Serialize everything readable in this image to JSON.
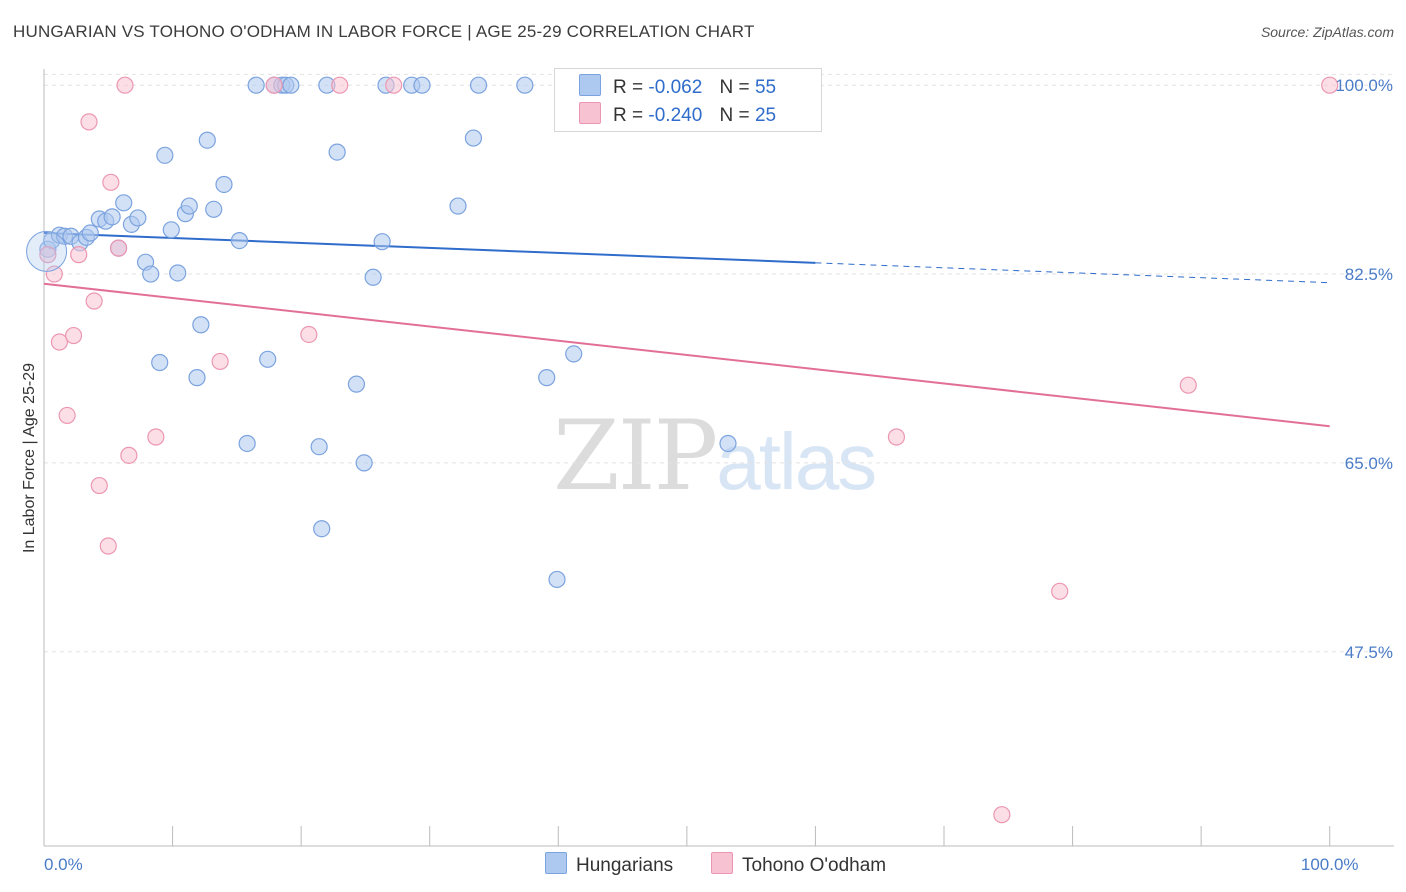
{
  "title": "HUNGARIAN VS TOHONO O'ODHAM IN LABOR FORCE | AGE 25-29 CORRELATION CHART",
  "source": "Source: ZipAtlas.com",
  "watermark": {
    "zip": "ZIP",
    "atlas": "atlas"
  },
  "legend": {
    "r_label": "R =",
    "n_label": "N =",
    "series": [
      {
        "r": "-0.062",
        "n": "55"
      },
      {
        "r": "-0.240",
        "n": "25"
      }
    ]
  },
  "colors": {
    "blue_fill": "#aec9ef",
    "blue_stroke": "#7ba3df",
    "blue_line": "#2f6ccb",
    "pink_fill": "#f7c3d2",
    "pink_stroke": "#ec97b2",
    "pink_line": "#e26f97",
    "tick_text": "#4a7cc7",
    "grid": "#e2e2e2"
  },
  "chart_data": {
    "type": "scatter",
    "title": "HUNGARIAN VS TOHONO O'ODHAM IN LABOR FORCE | AGE 25-29 CORRELATION CHART",
    "xlabel": "",
    "ylabel": "In Labor Force | Age 25-29",
    "xlim": [
      0,
      105
    ],
    "ylim": [
      29.5,
      101.5
    ],
    "x_tick_labels": [
      {
        "value": 0,
        "label": "0.0%"
      },
      {
        "value": 100,
        "label": "100.0%"
      }
    ],
    "y_tick_labels": [
      {
        "value": 100,
        "label": "100.0%"
      },
      {
        "value": 82.5,
        "label": "82.5%"
      },
      {
        "value": 65,
        "label": "65.0%"
      },
      {
        "value": 47.5,
        "label": "47.5%"
      }
    ],
    "series": [
      {
        "name": "Hungarians",
        "points": [
          [
            0.3,
            84.8
          ],
          [
            0.6,
            85.6
          ],
          [
            1.2,
            86.1
          ],
          [
            1.6,
            86.0
          ],
          [
            2.1,
            86.0
          ],
          [
            2.8,
            85.4
          ],
          [
            3.3,
            85.9
          ],
          [
            3.6,
            86.3
          ],
          [
            4.3,
            87.6
          ],
          [
            4.8,
            87.4
          ],
          [
            5.3,
            87.8
          ],
          [
            6.2,
            89.1
          ],
          [
            6.8,
            87.1
          ],
          [
            7.3,
            87.7
          ],
          [
            5.8,
            84.9
          ],
          [
            7.9,
            83.6
          ],
          [
            8.3,
            82.5
          ],
          [
            9.0,
            74.3
          ],
          [
            9.4,
            93.5
          ],
          [
            9.9,
            86.6
          ],
          [
            10.4,
            82.6
          ],
          [
            11.0,
            88.1
          ],
          [
            11.3,
            88.8
          ],
          [
            11.9,
            72.9
          ],
          [
            12.2,
            77.8
          ],
          [
            12.7,
            94.9
          ],
          [
            13.2,
            88.5
          ],
          [
            14.0,
            90.8
          ],
          [
            15.2,
            85.6
          ],
          [
            15.8,
            66.8
          ],
          [
            16.5,
            100.0
          ],
          [
            17.4,
            74.6
          ],
          [
            17.9,
            100.0
          ],
          [
            18.5,
            100.0
          ],
          [
            18.8,
            100.0
          ],
          [
            19.2,
            100.0
          ],
          [
            21.4,
            66.5
          ],
          [
            21.6,
            58.9
          ],
          [
            22.0,
            100.0
          ],
          [
            22.8,
            93.8
          ],
          [
            24.3,
            72.3
          ],
          [
            24.9,
            65.0
          ],
          [
            25.6,
            82.2
          ],
          [
            26.3,
            85.5
          ],
          [
            26.6,
            100.0
          ],
          [
            28.6,
            100.0
          ],
          [
            29.4,
            100.0
          ],
          [
            32.2,
            88.8
          ],
          [
            33.4,
            95.1
          ],
          [
            33.8,
            100.0
          ],
          [
            37.4,
            100.0
          ],
          [
            39.1,
            72.9
          ],
          [
            39.9,
            54.2
          ],
          [
            41.2,
            75.1
          ],
          [
            53.2,
            66.8
          ]
        ]
      },
      {
        "name": "Tohono O'odham",
        "points": [
          [
            0.3,
            84.3
          ],
          [
            0.8,
            82.5
          ],
          [
            1.2,
            76.2
          ],
          [
            1.8,
            69.4
          ],
          [
            2.3,
            76.8
          ],
          [
            2.7,
            84.3
          ],
          [
            3.5,
            96.6
          ],
          [
            3.9,
            80.0
          ],
          [
            4.3,
            62.9
          ],
          [
            5.0,
            57.3
          ],
          [
            5.2,
            91.0
          ],
          [
            5.8,
            84.9
          ],
          [
            6.3,
            100.0
          ],
          [
            6.6,
            65.7
          ],
          [
            8.7,
            67.4
          ],
          [
            13.7,
            74.4
          ],
          [
            17.9,
            100.0
          ],
          [
            20.6,
            76.9
          ],
          [
            23.0,
            100.0
          ],
          [
            27.2,
            100.0
          ],
          [
            66.3,
            67.4
          ],
          [
            74.5,
            32.4
          ],
          [
            79.0,
            53.1
          ],
          [
            89.0,
            72.2
          ],
          [
            100.0,
            100.0
          ]
        ]
      }
    ],
    "trend_lines": [
      {
        "series": "Hungarians",
        "x0": 0,
        "y0": 86.3,
        "x_solid_end": 60,
        "x1": 100,
        "y1": 81.7
      },
      {
        "series": "Tohono O'odham",
        "x0": 0,
        "y0": 81.6,
        "x1": 100,
        "y1": 68.4
      }
    ]
  },
  "bottom_legend": [
    {
      "label": "Hungarians"
    },
    {
      "label": "Tohono O'odham"
    }
  ]
}
